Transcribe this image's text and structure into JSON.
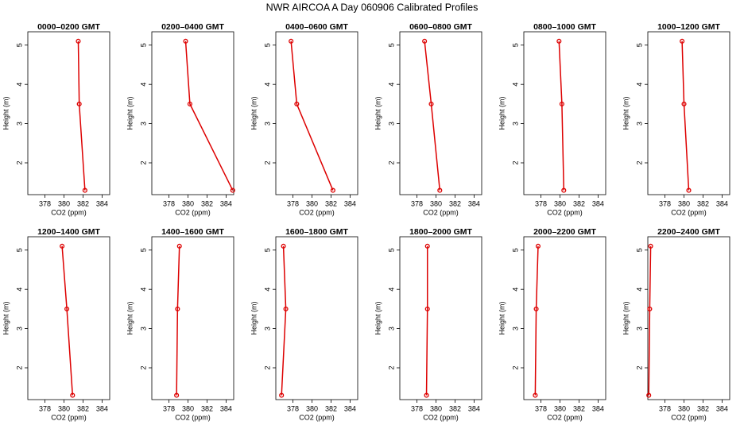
{
  "title": "NWR AIRCOA A  Day 060906  Calibrated Profiles",
  "chart_data": [
    {
      "type": "line",
      "title": "0000–0200 GMT",
      "x_label": "CO2 (ppm)",
      "y_label": "Height (m)",
      "color": "#dd0000",
      "x": [
        381.5,
        381.6,
        382.2
      ],
      "values": [
        5.1,
        3.5,
        1.3
      ],
      "xlim": [
        376.2,
        384.8
      ],
      "ylim": [
        1.19,
        5.34
      ],
      "xticks": [
        378,
        380,
        382,
        384
      ],
      "yticks": [
        2,
        3,
        4,
        5
      ]
    },
    {
      "type": "line",
      "title": "0200–0400 GMT",
      "x_label": "CO2 (ppm)",
      "y_label": "Height (m)",
      "color": "#dd0000",
      "x": [
        379.75,
        380.2,
        384.7
      ],
      "values": [
        5.1,
        3.5,
        1.3
      ],
      "xlim": [
        376.2,
        384.8
      ],
      "ylim": [
        1.19,
        5.34
      ],
      "xticks": [
        378,
        380,
        382,
        384
      ],
      "yticks": [
        2,
        3,
        4,
        5
      ]
    },
    {
      "type": "line",
      "title": "0400–0600 GMT",
      "x_label": "CO2 (ppm)",
      "y_label": "Height (m)",
      "color": "#dd0000",
      "x": [
        377.8,
        378.4,
        382.2
      ],
      "values": [
        5.1,
        3.5,
        1.3
      ],
      "xlim": [
        376.2,
        384.8
      ],
      "ylim": [
        1.19,
        5.34
      ],
      "xticks": [
        378,
        380,
        382,
        384
      ],
      "yticks": [
        2,
        3,
        4,
        5
      ]
    },
    {
      "type": "line",
      "title": "0600–0800 GMT",
      "x_label": "CO2 (ppm)",
      "y_label": "Height (m)",
      "color": "#dd0000",
      "x": [
        378.8,
        379.5,
        380.4
      ],
      "values": [
        5.1,
        3.5,
        1.3
      ],
      "xlim": [
        376.2,
        384.8
      ],
      "ylim": [
        1.19,
        5.34
      ],
      "xticks": [
        378,
        380,
        382,
        384
      ],
      "yticks": [
        2,
        3,
        4,
        5
      ]
    },
    {
      "type": "line",
      "title": "0800–1000 GMT",
      "x_label": "CO2 (ppm)",
      "y_label": "Height (m)",
      "color": "#dd0000",
      "x": [
        379.9,
        380.2,
        380.4
      ],
      "values": [
        5.1,
        3.5,
        1.3
      ],
      "xlim": [
        376.2,
        384.8
      ],
      "ylim": [
        1.19,
        5.34
      ],
      "xticks": [
        378,
        380,
        382,
        384
      ],
      "yticks": [
        2,
        3,
        4,
        5
      ]
    },
    {
      "type": "line",
      "title": "1000–1200 GMT",
      "x_label": "CO2 (ppm)",
      "y_label": "Height (m)",
      "color": "#dd0000",
      "x": [
        379.8,
        380.0,
        380.5
      ],
      "values": [
        5.1,
        3.5,
        1.3
      ],
      "xlim": [
        376.2,
        384.8
      ],
      "ylim": [
        1.19,
        5.34
      ],
      "xticks": [
        378,
        380,
        382,
        384
      ],
      "yticks": [
        2,
        3,
        4,
        5
      ]
    },
    {
      "type": "line",
      "title": "1200–1400 GMT",
      "x_label": "CO2 (ppm)",
      "y_label": "Height (m)",
      "color": "#dd0000",
      "x": [
        379.8,
        380.3,
        380.9
      ],
      "values": [
        5.1,
        3.5,
        1.3
      ],
      "xlim": [
        376.2,
        384.8
      ],
      "ylim": [
        1.19,
        5.34
      ],
      "xticks": [
        378,
        380,
        382,
        384
      ],
      "yticks": [
        2,
        3,
        4,
        5
      ]
    },
    {
      "type": "line",
      "title": "1400–1600 GMT",
      "x_label": "CO2 (ppm)",
      "y_label": "Height (m)",
      "color": "#dd0000",
      "x": [
        379.1,
        378.9,
        378.8
      ],
      "values": [
        5.1,
        3.5,
        1.3
      ],
      "xlim": [
        376.2,
        384.8
      ],
      "ylim": [
        1.19,
        5.34
      ],
      "xticks": [
        378,
        380,
        382,
        384
      ],
      "yticks": [
        2,
        3,
        4,
        5
      ]
    },
    {
      "type": "line",
      "title": "1600–1800 GMT",
      "x_label": "CO2 (ppm)",
      "y_label": "Height (m)",
      "color": "#dd0000",
      "x": [
        377.0,
        377.25,
        376.8
      ],
      "values": [
        5.1,
        3.5,
        1.3
      ],
      "xlim": [
        376.2,
        384.8
      ],
      "ylim": [
        1.19,
        5.34
      ],
      "xticks": [
        378,
        380,
        382,
        384
      ],
      "yticks": [
        2,
        3,
        4,
        5
      ]
    },
    {
      "type": "line",
      "title": "1800–2000 GMT",
      "x_label": "CO2 (ppm)",
      "y_label": "Height (m)",
      "color": "#dd0000",
      "x": [
        379.1,
        379.1,
        379.0
      ],
      "values": [
        5.1,
        3.5,
        1.3
      ],
      "xlim": [
        376.2,
        384.8
      ],
      "ylim": [
        1.19,
        5.34
      ],
      "xticks": [
        378,
        380,
        382,
        384
      ],
      "yticks": [
        2,
        3,
        4,
        5
      ]
    },
    {
      "type": "line",
      "title": "2000–2200 GMT",
      "x_label": "CO2 (ppm)",
      "y_label": "Height (m)",
      "color": "#dd0000",
      "x": [
        377.7,
        377.5,
        377.4
      ],
      "values": [
        5.1,
        3.5,
        1.3
      ],
      "xlim": [
        376.2,
        384.8
      ],
      "ylim": [
        1.19,
        5.34
      ],
      "xticks": [
        378,
        380,
        382,
        384
      ],
      "yticks": [
        2,
        3,
        4,
        5
      ]
    },
    {
      "type": "line",
      "title": "2200–2400 GMT",
      "x_label": "CO2 (ppm)",
      "y_label": "Height (m)",
      "color": "#dd0000",
      "x": [
        376.5,
        376.4,
        376.3
      ],
      "values": [
        5.1,
        3.5,
        1.3
      ],
      "xlim": [
        376.2,
        384.8
      ],
      "ylim": [
        1.19,
        5.34
      ],
      "xticks": [
        378,
        380,
        382,
        384
      ],
      "yticks": [
        2,
        3,
        4,
        5
      ]
    }
  ]
}
